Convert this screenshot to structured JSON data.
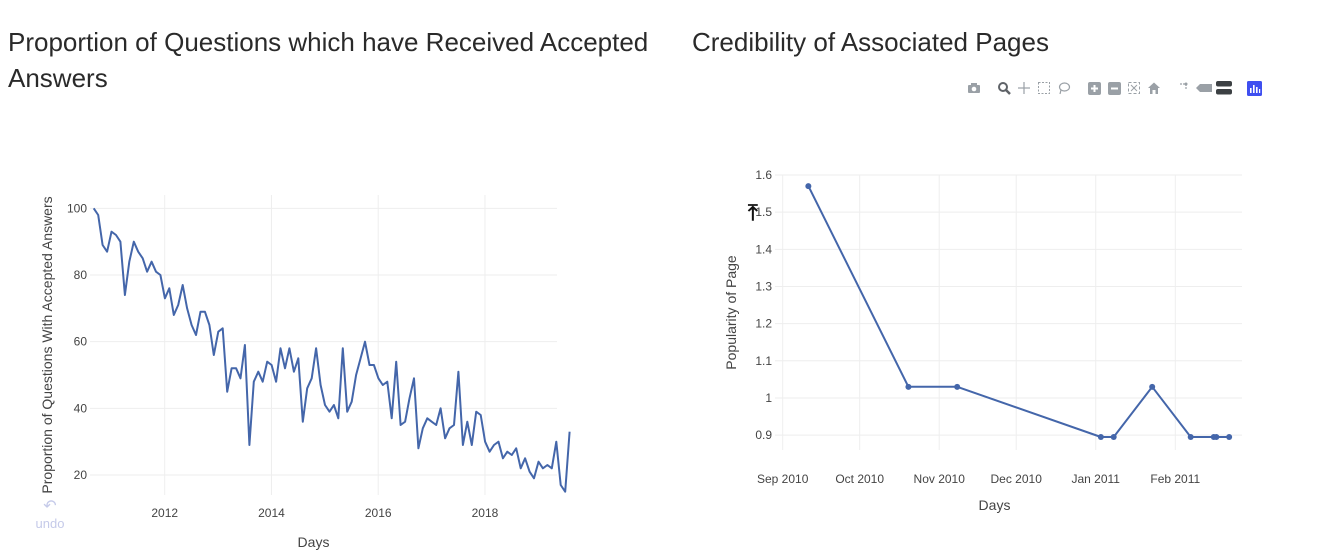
{
  "titles": {
    "left": "Proportion of Questions which have Received Accepted Answers",
    "right": "Credibility of Associated Pages"
  },
  "undo": {
    "label": "undo"
  },
  "modebar": {
    "buttons": [
      "camera-icon",
      "zoom-icon",
      "pan-icon",
      "box-select-icon",
      "lasso-icon",
      "zoom-in-icon",
      "zoom-out-icon",
      "autoscale-icon",
      "reset-axes-icon",
      "spike-lines-icon",
      "hover-closest-icon",
      "hover-compare-icon",
      "plotly-logo-icon"
    ]
  },
  "colors": {
    "line": "#4466aa",
    "grid": "#eeeeee",
    "tick": "#444444"
  },
  "chart_data": [
    {
      "type": "line",
      "xlabel": "Days",
      "ylabel": "Proportion of Questions With Accepted Answers",
      "x_range": [
        2010.6,
        2019.35
      ],
      "ylim": [
        14,
        104
      ],
      "x_ticks": [
        2012,
        2014,
        2016,
        2018
      ],
      "x_tick_labels": [
        "2012",
        "2014",
        "2016",
        "2018"
      ],
      "y_ticks": [
        20,
        40,
        60,
        80,
        100
      ],
      "y_tick_labels": [
        "20",
        "40",
        "60",
        "80",
        "100"
      ],
      "grid": true,
      "series": [
        {
          "x_start": 2010.67,
          "x_step": 0.08333,
          "values": [
            100,
            98,
            89,
            87,
            93,
            92,
            90,
            74,
            84,
            90,
            87,
            85,
            81,
            84,
            81,
            80,
            73,
            76,
            68,
            71,
            77,
            70,
            65,
            62,
            69,
            69,
            65,
            56,
            63,
            64,
            45,
            52,
            52,
            49,
            59,
            29,
            48,
            51,
            48,
            54,
            53,
            48,
            58,
            52,
            58,
            51,
            55,
            36,
            46,
            49,
            58,
            47,
            41,
            39,
            41,
            37,
            58,
            39,
            42,
            50,
            55,
            60,
            53,
            53,
            49,
            47,
            48,
            37,
            54,
            35,
            36,
            43,
            49,
            28,
            34,
            37,
            36,
            35,
            40,
            31,
            34,
            35,
            51,
            29,
            36,
            29,
            39,
            38,
            30,
            27,
            29,
            30,
            25,
            27,
            26,
            28,
            22,
            25,
            21,
            19,
            24,
            22,
            23,
            22,
            30,
            17,
            15,
            33
          ]
        }
      ]
    },
    {
      "type": "line",
      "xlabel": "Days",
      "ylabel": "Popularity of Page",
      "ylim": [
        0.86,
        1.6
      ],
      "x_tick_labels": [
        "Sep 2010",
        "Oct 2010",
        "Nov 2010",
        "Dec 2010",
        "Jan 2011",
        "Feb 2011"
      ],
      "x_tick_days": [
        0,
        30,
        61,
        91,
        122,
        153
      ],
      "y_ticks": [
        0.9,
        1,
        1.1,
        1.2,
        1.3,
        1.4,
        1.5,
        1.6
      ],
      "y_tick_labels": [
        "0.9",
        "1",
        "1.1",
        "1.2",
        "1.3",
        "1.4",
        "1.5",
        "1.6"
      ],
      "grid": true,
      "series": [
        {
          "x": [
            "2010-09-11",
            "2010-10-20",
            "2010-11-08",
            "2011-01-03",
            "2011-01-08",
            "2011-01-23",
            "2011-02-07",
            "2011-02-16",
            "2011-02-17",
            "2011-02-22"
          ],
          "x_days": [
            10,
            49,
            68,
            124,
            129,
            144,
            159,
            168,
            169,
            174
          ],
          "values": [
            1.57,
            1.03,
            1.03,
            0.895,
            0.895,
            1.03,
            0.895,
            0.895,
            0.895,
            0.895
          ]
        }
      ]
    }
  ]
}
